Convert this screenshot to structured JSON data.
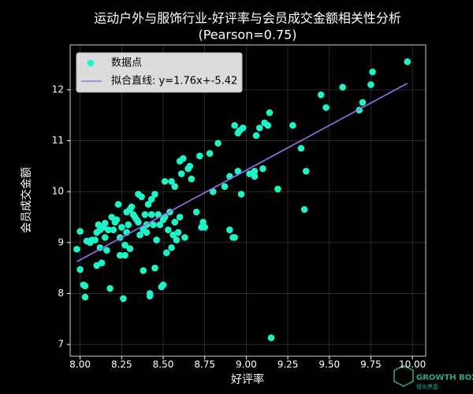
{
  "chart_data": {
    "type": "scatter",
    "title": "运动户外与服饰行业-好评率与会员成交金额相关性分析",
    "subtitle": "(Pearson=0.75)",
    "x_label": "好评率",
    "y_label": "会员成交金额",
    "legend": {
      "position": "upper left",
      "points_label": "数据点",
      "line_label": "拟合直线: y=1.76x+-5.42"
    },
    "fit": {
      "slope": 1.76,
      "intercept": -5.42,
      "color": "#9b6ff0"
    },
    "color": "#1df5c8",
    "grid": true,
    "xlim": [
      7.94,
      10.08
    ],
    "ylim": [
      6.77,
      12.88
    ],
    "xticks": [
      {
        "value": 8,
        "label": "8.00"
      },
      {
        "value": 8.25,
        "label": "8.25"
      },
      {
        "value": 8.5,
        "label": "8.50"
      },
      {
        "value": 8.75,
        "label": "8.75"
      },
      {
        "value": 9,
        "label": "9.00"
      },
      {
        "value": 9.25,
        "label": "9.25"
      },
      {
        "value": 9.5,
        "label": "9.50"
      },
      {
        "value": 9.75,
        "label": "9.75"
      },
      {
        "value": 10,
        "label": "10.00"
      }
    ],
    "yticks": [
      7,
      8,
      9,
      10,
      11,
      12
    ],
    "x": [
      7.98,
      8.0,
      8.0,
      8.02,
      8.03,
      8.03,
      8.04,
      8.06,
      8.07,
      8.09,
      8.1,
      8.1,
      8.11,
      8.12,
      8.12,
      8.13,
      8.14,
      8.15,
      8.15,
      8.16,
      8.17,
      8.18,
      8.19,
      8.2,
      8.21,
      8.22,
      8.23,
      8.24,
      8.24,
      8.25,
      8.26,
      8.27,
      8.27,
      8.28,
      8.28,
      8.29,
      8.3,
      8.3,
      8.31,
      8.32,
      8.33,
      8.34,
      8.35,
      8.35,
      8.36,
      8.37,
      8.38,
      8.38,
      8.39,
      8.4,
      8.4,
      8.41,
      8.42,
      8.42,
      8.43,
      8.43,
      8.44,
      8.45,
      8.45,
      8.46,
      8.47,
      8.48,
      8.49,
      8.5,
      8.5,
      8.51,
      8.51,
      8.52,
      8.53,
      8.54,
      8.55,
      8.55,
      8.56,
      8.57,
      8.57,
      8.58,
      8.59,
      8.6,
      8.6,
      8.61,
      8.62,
      8.63,
      8.65,
      8.66,
      8.67,
      8.7,
      8.72,
      8.73,
      8.74,
      8.75,
      8.78,
      8.8,
      8.83,
      8.87,
      8.9,
      8.9,
      8.92,
      8.93,
      8.93,
      8.95,
      8.95,
      8.96,
      8.97,
      8.98,
      9.02,
      9.05,
      9.05,
      9.06,
      9.08,
      9.1,
      9.11,
      9.13,
      9.14,
      9.15,
      9.19,
      9.28,
      9.33,
      9.35,
      9.36,
      9.45,
      9.48,
      9.58,
      9.68,
      9.7,
      9.75,
      9.76,
      9.97
    ],
    "values": [
      8.87,
      9.22,
      8.47,
      8.17,
      8.15,
      7.93,
      9.03,
      9.0,
      9.05,
      9.05,
      9.2,
      8.55,
      9.35,
      9.25,
      8.9,
      8.6,
      9.3,
      9.38,
      9.1,
      8.85,
      9.25,
      8.1,
      9.5,
      9.25,
      9.4,
      9.45,
      9.75,
      9.1,
      8.75,
      9.3,
      7.9,
      8.75,
      8.95,
      9.6,
      9.2,
      9.35,
      8.88,
      9.65,
      9.7,
      9.55,
      9.5,
      9.45,
      9.4,
      9.95,
      9.15,
      9.9,
      9.25,
      8.45,
      9.55,
      9.2,
      9.35,
      9.75,
      8.0,
      7.95,
      9.85,
      9.55,
      9.35,
      9.95,
      8.5,
      9.05,
      9.55,
      9.35,
      8.13,
      8.17,
      9.45,
      10.2,
      9.5,
      8.8,
      9.25,
      9.6,
      10.2,
      8.9,
      9.15,
      10.1,
      9.4,
      9.05,
      9.2,
      10.6,
      9.5,
      10.35,
      10.65,
      9.1,
      10.45,
      10.5,
      10.25,
      9.6,
      10.7,
      9.3,
      9.4,
      9.3,
      10.75,
      10.0,
      10.95,
      10.1,
      9.25,
      10.3,
      9.1,
      9.1,
      11.3,
      10.4,
      11.15,
      11.2,
      9.95,
      11.25,
      10.35,
      10.3,
      10.4,
      11.1,
      11.25,
      10.45,
      11.35,
      11.3,
      11.55,
      7.13,
      10.05,
      11.3,
      10.85,
      9.65,
      10.4,
      11.9,
      11.65,
      12.05,
      11.6,
      11.75,
      12.1,
      12.35,
      12.55
    ],
    "watermark": "GROWTH BOX",
    "watermark_sub": "增长黑盒"
  }
}
